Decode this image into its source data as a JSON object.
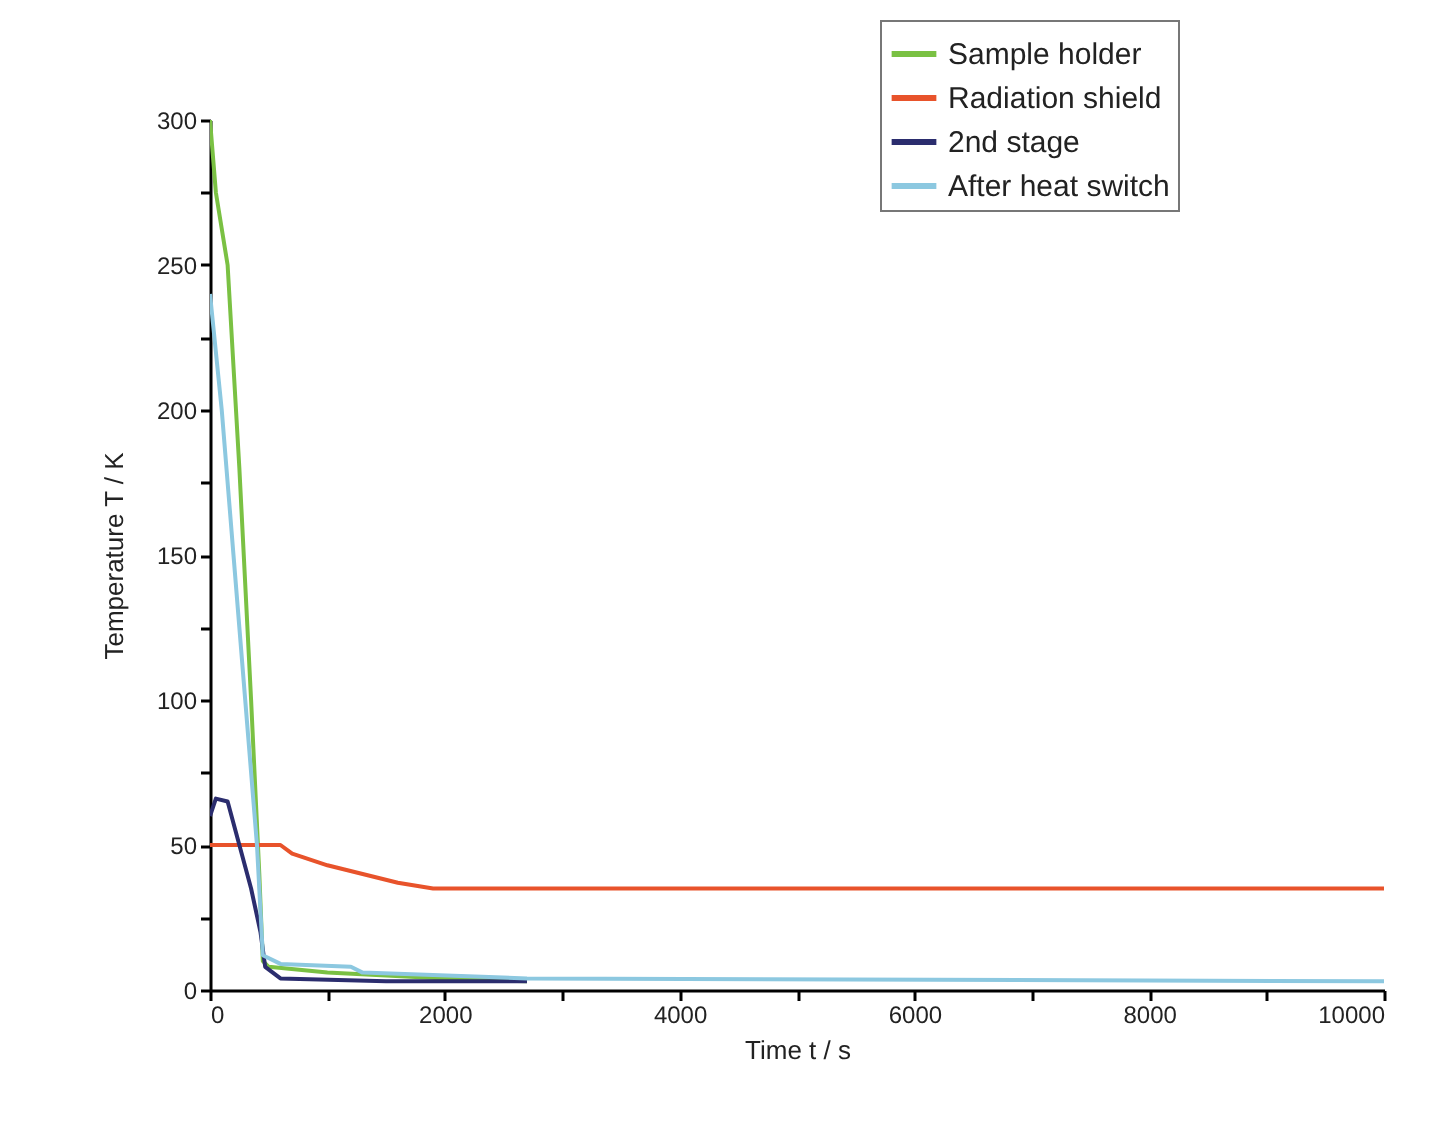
{
  "chart_data": {
    "type": "line",
    "xlabel": "Time t / s",
    "ylabel": "Temperature T / K",
    "xlim": [
      0,
      10000
    ],
    "ylim": [
      0,
      300
    ],
    "xticks": [
      0,
      {
        "value": 1000,
        "label": null
      },
      2000,
      {
        "value": 3000,
        "label": null
      },
      4000,
      {
        "value": 5000,
        "label": null
      },
      6000,
      {
        "value": 7000,
        "label": null
      },
      8000,
      {
        "value": 9000,
        "label": null
      },
      10000
    ],
    "yticks": [
      0,
      {
        "value": 25,
        "label": null
      },
      50,
      {
        "value": 75,
        "label": null
      },
      100,
      {
        "value": 125,
        "label": null
      },
      150,
      {
        "value": 175,
        "label": null
      },
      200,
      {
        "value": 225,
        "label": null
      },
      250,
      {
        "value": 275,
        "label": null
      },
      300
    ],
    "grid": false,
    "legend": "top right",
    "series": [
      {
        "name": "Sample holder",
        "color": "#7ac143",
        "x": [
          0,
          50,
          150,
          250,
          350,
          420,
          450,
          500,
          1000,
          2000,
          2700
        ],
        "values": [
          300,
          275,
          250,
          180,
          100,
          40,
          10,
          8,
          6,
          4,
          3
        ]
      },
      {
        "name": "Radiation shield",
        "color": "#e8532b",
        "x": [
          0,
          100,
          600,
          700,
          1000,
          1300,
          1600,
          1900,
          10000
        ],
        "values": [
          50,
          50,
          50,
          47,
          43,
          40,
          37,
          35,
          35
        ]
      },
      {
        "name": "2nd stage",
        "color": "#2b2d6e",
        "x": [
          0,
          50,
          150,
          250,
          350,
          430,
          470,
          600,
          1500,
          2700
        ],
        "values": [
          60,
          66,
          65,
          50,
          35,
          20,
          8,
          4,
          3,
          3
        ]
      },
      {
        "name": "After heat switch",
        "color": "#8cc8e0",
        "x": [
          0,
          100,
          200,
          300,
          400,
          450,
          600,
          1200,
          1300,
          2700,
          10000
        ],
        "values": [
          240,
          200,
          150,
          100,
          50,
          12,
          9,
          8,
          6,
          4,
          3
        ]
      }
    ]
  }
}
